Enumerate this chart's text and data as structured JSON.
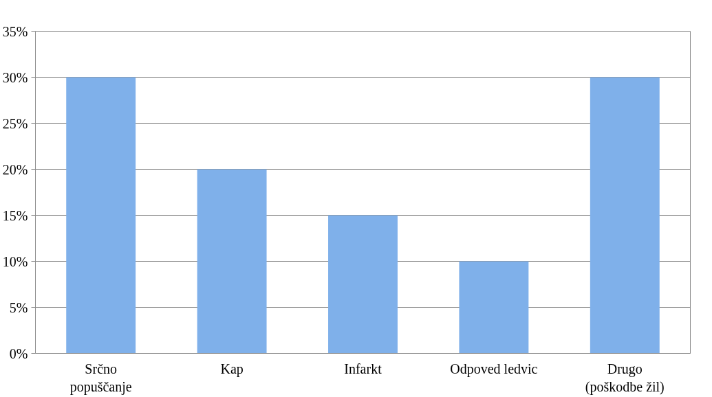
{
  "chart_data": {
    "type": "bar",
    "categories": [
      "Srčno popuščanje",
      "Kap",
      "Infarkt",
      "Odpoved ledvic",
      "Drugo (poškodbe žil)"
    ],
    "values": [
      30,
      20,
      15,
      10,
      30
    ],
    "color": "#7fb0ea",
    "ylim": [
      0,
      35
    ],
    "yticks": [
      {
        "value": 0,
        "label": "0%"
      },
      {
        "value": 5,
        "label": "5%"
      },
      {
        "value": 10,
        "label": "10%"
      },
      {
        "value": 15,
        "label": "15%"
      },
      {
        "value": 20,
        "label": "20%"
      },
      {
        "value": 25,
        "label": "25%"
      },
      {
        "value": 30,
        "label": "30%"
      },
      {
        "value": 35,
        "label": "35%"
      }
    ],
    "grid": "y"
  }
}
